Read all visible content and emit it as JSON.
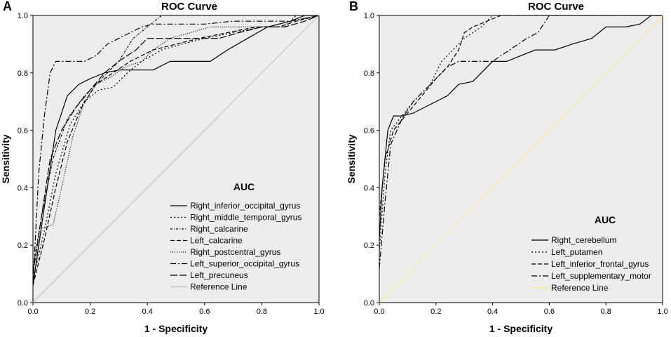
{
  "chart_data": [
    {
      "type": "line",
      "panel_label": "A",
      "title": "ROC Curve",
      "xlabel": "1 - Specificity",
      "ylabel": "Sensitivity",
      "xlim": [
        0,
        1
      ],
      "ylim": [
        0,
        1
      ],
      "xticks": [
        "0.0",
        "0.2",
        "0.4",
        "0.6",
        "0.8",
        "1.0"
      ],
      "yticks": [
        "0.0",
        "0.2",
        "0.4",
        "0.6",
        "0.8",
        "1.0"
      ],
      "legend_title": "AUC",
      "legend_position": "bottom-right",
      "series": [
        {
          "name": "Right_inferior_occipital_gyrus",
          "dash": "",
          "color": "#000000",
          "points": [
            [
              0,
              0.06
            ],
            [
              0.02,
              0.2
            ],
            [
              0.05,
              0.4
            ],
            [
              0.08,
              0.6
            ],
            [
              0.12,
              0.72
            ],
            [
              0.16,
              0.76
            ],
            [
              0.2,
              0.78
            ],
            [
              0.25,
              0.8
            ],
            [
              0.3,
              0.81
            ],
            [
              0.36,
              0.81
            ],
            [
              0.42,
              0.81
            ],
            [
              0.48,
              0.84
            ],
            [
              0.55,
              0.84
            ],
            [
              0.62,
              0.84
            ],
            [
              0.68,
              0.88
            ],
            [
              0.75,
              0.92
            ],
            [
              0.82,
              0.96
            ],
            [
              0.9,
              0.98
            ],
            [
              0.95,
              1.0
            ],
            [
              1,
              1
            ]
          ]
        },
        {
          "name": "Right_middle_temporal_gyrus",
          "dash": "2,3",
          "color": "#000000",
          "points": [
            [
              0,
              0.08
            ],
            [
              0.04,
              0.25
            ],
            [
              0.08,
              0.45
            ],
            [
              0.13,
              0.62
            ],
            [
              0.18,
              0.7
            ],
            [
              0.23,
              0.74
            ],
            [
              0.28,
              0.75
            ],
            [
              0.33,
              0.8
            ],
            [
              0.38,
              0.84
            ],
            [
              0.45,
              0.88
            ],
            [
              0.52,
              0.9
            ],
            [
              0.6,
              0.92
            ],
            [
              0.7,
              0.94
            ],
            [
              0.8,
              0.96
            ],
            [
              0.88,
              0.96
            ],
            [
              0.92,
              1.0
            ],
            [
              1,
              1
            ]
          ]
        },
        {
          "name": "Right_calcarine",
          "dash": "3,2,1,2",
          "color": "#000000",
          "points": [
            [
              0,
              0.12
            ],
            [
              0.03,
              0.3
            ],
            [
              0.07,
              0.5
            ],
            [
              0.12,
              0.64
            ],
            [
              0.18,
              0.72
            ],
            [
              0.24,
              0.78
            ],
            [
              0.3,
              0.84
            ],
            [
              0.35,
              0.92
            ],
            [
              0.4,
              0.96
            ],
            [
              0.45,
              1.0
            ],
            [
              1,
              1
            ]
          ]
        },
        {
          "name": "Left_calcarine",
          "dash": "6,3",
          "color": "#000000",
          "points": [
            [
              0,
              0.06
            ],
            [
              0.04,
              0.22
            ],
            [
              0.08,
              0.4
            ],
            [
              0.12,
              0.56
            ],
            [
              0.17,
              0.68
            ],
            [
              0.22,
              0.76
            ],
            [
              0.28,
              0.8
            ],
            [
              0.34,
              0.84
            ],
            [
              0.42,
              0.88
            ],
            [
              0.5,
              0.9
            ],
            [
              0.58,
              0.92
            ],
            [
              0.68,
              0.94
            ],
            [
              0.78,
              0.96
            ],
            [
              0.86,
              0.96
            ],
            [
              0.92,
              0.98
            ],
            [
              1,
              1
            ]
          ]
        },
        {
          "name": "Right_postcentral_gyrus",
          "dash": "1,2",
          "color": "#000000",
          "points": [
            [
              0,
              0.06
            ],
            [
              0.03,
              0.26
            ],
            [
              0.07,
              0.27
            ],
            [
              0.1,
              0.4
            ],
            [
              0.14,
              0.58
            ],
            [
              0.18,
              0.7
            ],
            [
              0.22,
              0.76
            ],
            [
              0.28,
              0.79
            ],
            [
              0.32,
              0.82
            ],
            [
              0.38,
              0.84
            ],
            [
              0.42,
              0.88
            ],
            [
              0.48,
              0.92
            ],
            [
              0.55,
              0.94
            ],
            [
              0.62,
              0.96
            ],
            [
              0.72,
              0.96
            ],
            [
              0.82,
              0.96
            ],
            [
              0.9,
              0.98
            ],
            [
              1,
              1
            ]
          ]
        },
        {
          "name": "Left_superior_occipital_gyrus",
          "dash": "8,3,2,3",
          "color": "#000000",
          "points": [
            [
              0,
              0.06
            ],
            [
              0.02,
              0.45
            ],
            [
              0.04,
              0.65
            ],
            [
              0.06,
              0.8
            ],
            [
              0.08,
              0.84
            ],
            [
              0.12,
              0.84
            ],
            [
              0.18,
              0.84
            ],
            [
              0.22,
              0.86
            ],
            [
              0.26,
              0.9
            ],
            [
              0.3,
              0.92
            ],
            [
              0.34,
              0.94
            ],
            [
              0.38,
              0.96
            ],
            [
              0.42,
              0.97
            ],
            [
              0.5,
              0.97
            ],
            [
              0.6,
              0.97
            ],
            [
              0.7,
              0.98
            ],
            [
              0.8,
              0.98
            ],
            [
              0.9,
              0.98
            ],
            [
              1,
              1
            ]
          ]
        },
        {
          "name": "Left_precuneus",
          "dash": "10,3",
          "color": "#000000",
          "points": [
            [
              0,
              0.1
            ],
            [
              0.03,
              0.3
            ],
            [
              0.06,
              0.5
            ],
            [
              0.1,
              0.6
            ],
            [
              0.15,
              0.68
            ],
            [
              0.2,
              0.74
            ],
            [
              0.25,
              0.8
            ],
            [
              0.3,
              0.84
            ],
            [
              0.36,
              0.88
            ],
            [
              0.4,
              0.92
            ],
            [
              0.45,
              0.92
            ],
            [
              0.55,
              0.92
            ],
            [
              0.65,
              0.92
            ],
            [
              0.72,
              0.94
            ],
            [
              0.8,
              0.96
            ],
            [
              0.88,
              0.96
            ],
            [
              0.95,
              0.98
            ],
            [
              1,
              1
            ]
          ]
        },
        {
          "name": "Reference Line",
          "dash": "",
          "color": "#bdbdbd",
          "points": [
            [
              0,
              0
            ],
            [
              1,
              1
            ]
          ]
        }
      ]
    },
    {
      "type": "line",
      "panel_label": "B",
      "title": "ROC Curve",
      "xlabel": "1 - Specificity",
      "ylabel": "Sensitivity",
      "xlim": [
        0,
        1
      ],
      "ylim": [
        0,
        1
      ],
      "xticks": [
        "0.0",
        "0.2",
        "0.4",
        "0.6",
        "0.8",
        "1.0"
      ],
      "yticks": [
        "0.0",
        "0.2",
        "0.4",
        "0.6",
        "0.8",
        "1.0"
      ],
      "legend_title": "AUC",
      "legend_position": "bottom-right",
      "series": [
        {
          "name": "Right_cerebellum",
          "dash": "",
          "color": "#000000",
          "points": [
            [
              0,
              0.22
            ],
            [
              0.01,
              0.4
            ],
            [
              0.03,
              0.6
            ],
            [
              0.05,
              0.65
            ],
            [
              0.08,
              0.65
            ],
            [
              0.12,
              0.66
            ],
            [
              0.16,
              0.68
            ],
            [
              0.2,
              0.7
            ],
            [
              0.24,
              0.72
            ],
            [
              0.28,
              0.76
            ],
            [
              0.33,
              0.77
            ],
            [
              0.36,
              0.8
            ],
            [
              0.4,
              0.84
            ],
            [
              0.45,
              0.84
            ],
            [
              0.5,
              0.86
            ],
            [
              0.55,
              0.88
            ],
            [
              0.62,
              0.88
            ],
            [
              0.68,
              0.9
            ],
            [
              0.75,
              0.92
            ],
            [
              0.8,
              0.96
            ],
            [
              0.87,
              0.96
            ],
            [
              0.92,
              0.97
            ],
            [
              0.96,
              1.0
            ],
            [
              1,
              1
            ]
          ]
        },
        {
          "name": "Left_putamen",
          "dash": "2,3",
          "color": "#000000",
          "points": [
            [
              0,
              0.18
            ],
            [
              0.02,
              0.45
            ],
            [
              0.04,
              0.6
            ],
            [
              0.08,
              0.65
            ],
            [
              0.12,
              0.7
            ],
            [
              0.18,
              0.76
            ],
            [
              0.22,
              0.84
            ],
            [
              0.26,
              0.88
            ],
            [
              0.3,
              0.92
            ],
            [
              0.36,
              0.96
            ],
            [
              0.4,
              1.0
            ],
            [
              1,
              1
            ]
          ]
        },
        {
          "name": "Left_inferior_frontal_gyrus",
          "dash": "6,3",
          "color": "#000000",
          "points": [
            [
              0,
              0.3
            ],
            [
              0.02,
              0.5
            ],
            [
              0.05,
              0.6
            ],
            [
              0.1,
              0.66
            ],
            [
              0.15,
              0.72
            ],
            [
              0.2,
              0.78
            ],
            [
              0.24,
              0.82
            ],
            [
              0.28,
              0.88
            ],
            [
              0.3,
              0.94
            ],
            [
              0.33,
              0.96
            ],
            [
              0.38,
              0.98
            ],
            [
              0.43,
              1.0
            ],
            [
              1,
              1
            ]
          ]
        },
        {
          "name": "Left_supplementary_motor",
          "dash": "8,3,2,3",
          "color": "#000000",
          "points": [
            [
              0,
              0.12
            ],
            [
              0.02,
              0.35
            ],
            [
              0.04,
              0.55
            ],
            [
              0.08,
              0.64
            ],
            [
              0.12,
              0.7
            ],
            [
              0.16,
              0.74
            ],
            [
              0.2,
              0.78
            ],
            [
              0.24,
              0.82
            ],
            [
              0.28,
              0.84
            ],
            [
              0.34,
              0.84
            ],
            [
              0.4,
              0.84
            ],
            [
              0.46,
              0.88
            ],
            [
              0.52,
              0.92
            ],
            [
              0.56,
              0.94
            ],
            [
              0.6,
              1.0
            ],
            [
              1,
              1
            ]
          ]
        },
        {
          "name": "Reference Line",
          "dash": "",
          "color": "#f2ec8c",
          "points": [
            [
              0,
              0
            ],
            [
              1,
              1
            ]
          ]
        }
      ]
    }
  ]
}
